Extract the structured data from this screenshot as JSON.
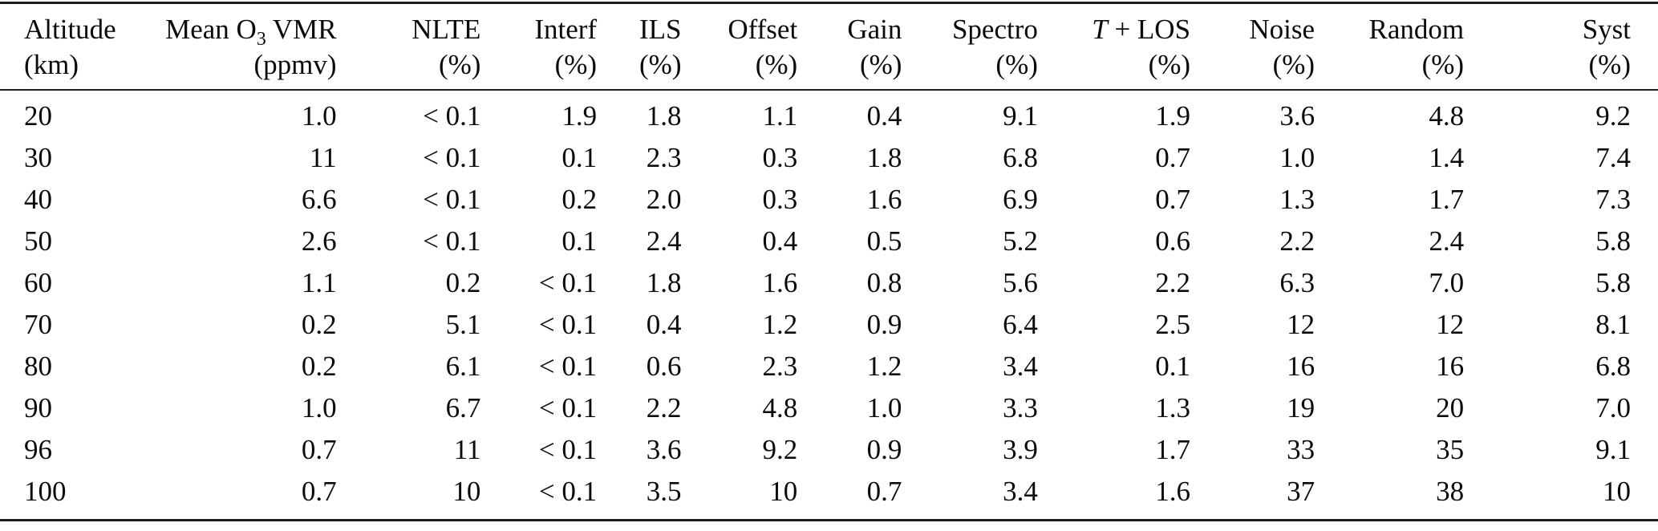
{
  "page": {
    "background": "#ffffff",
    "text_color": "#0b0b0b",
    "rule_color": "#1c1c1c"
  },
  "table": {
    "header": {
      "col1": {
        "label": "Altitude",
        "unit": "(km)"
      },
      "col2": {
        "label_pre": "Mean O",
        "label_sub": "3",
        "label_post": " VMR",
        "unit": "(ppmv)"
      },
      "col3": {
        "label": "NLTE",
        "unit": "(%)"
      },
      "col4": {
        "label": "Interf",
        "unit": "(%)"
      },
      "col5": {
        "label": "ILS",
        "unit": "(%)"
      },
      "col6": {
        "label": "Offset",
        "unit": "(%)"
      },
      "col7": {
        "label": "Gain",
        "unit": "(%)"
      },
      "col8": {
        "label": "Spectro",
        "unit": "(%)"
      },
      "col9": {
        "label_italic": "T",
        "label_rest": " + LOS",
        "unit": "(%)"
      },
      "col10": {
        "label": "Noise",
        "unit": "(%)"
      },
      "col11": {
        "label": "Random",
        "unit": "(%)"
      },
      "col12": {
        "label": "Syst",
        "unit": "(%)"
      }
    },
    "rows": [
      [
        "20",
        "1.0",
        "< 0.1",
        "1.9",
        "1.8",
        "1.1",
        "0.4",
        "9.1",
        "1.9",
        "3.6",
        "4.8",
        "9.2"
      ],
      [
        "30",
        "11",
        "< 0.1",
        "0.1",
        "2.3",
        "0.3",
        "1.8",
        "6.8",
        "0.7",
        "1.0",
        "1.4",
        "7.4"
      ],
      [
        "40",
        "6.6",
        "< 0.1",
        "0.2",
        "2.0",
        "0.3",
        "1.6",
        "6.9",
        "0.7",
        "1.3",
        "1.7",
        "7.3"
      ],
      [
        "50",
        "2.6",
        "< 0.1",
        "0.1",
        "2.4",
        "0.4",
        "0.5",
        "5.2",
        "0.6",
        "2.2",
        "2.4",
        "5.8"
      ],
      [
        "60",
        "1.1",
        "0.2",
        "< 0.1",
        "1.8",
        "1.6",
        "0.8",
        "5.6",
        "2.2",
        "6.3",
        "7.0",
        "5.8"
      ],
      [
        "70",
        "0.2",
        "5.1",
        "< 0.1",
        "0.4",
        "1.2",
        "0.9",
        "6.4",
        "2.5",
        "12",
        "12",
        "8.1"
      ],
      [
        "80",
        "0.2",
        "6.1",
        "< 0.1",
        "0.6",
        "2.3",
        "1.2",
        "3.4",
        "0.1",
        "16",
        "16",
        "6.8"
      ],
      [
        "90",
        "1.0",
        "6.7",
        "< 0.1",
        "2.2",
        "4.8",
        "1.0",
        "3.3",
        "1.3",
        "19",
        "20",
        "7.0"
      ],
      [
        "96",
        "0.7",
        "11",
        "< 0.1",
        "3.6",
        "9.2",
        "0.9",
        "3.9",
        "1.7",
        "33",
        "35",
        "9.1"
      ],
      [
        "100",
        "0.7",
        "10",
        "< 0.1",
        "3.5",
        "10",
        "0.7",
        "3.4",
        "1.6",
        "37",
        "38",
        "10"
      ]
    ]
  }
}
